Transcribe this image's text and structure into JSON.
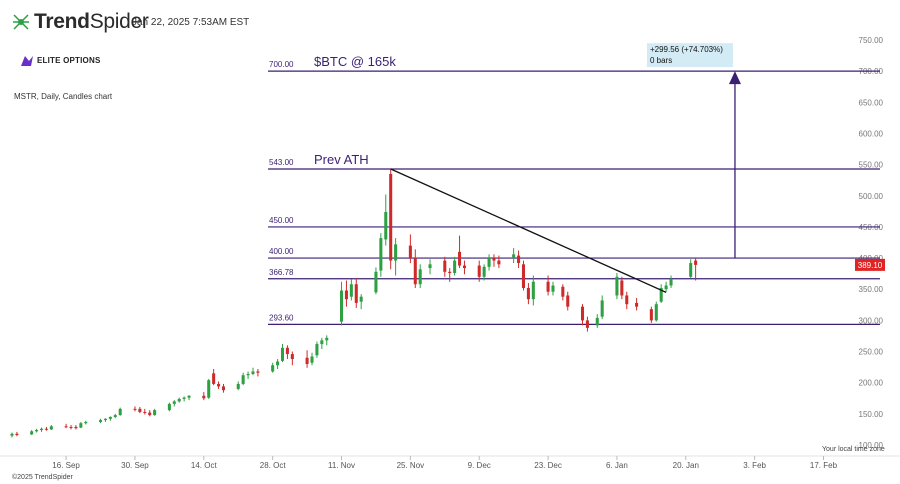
{
  "header": {
    "logo_bold": "Trend",
    "logo_light": "Spider",
    "datetime": "Jan 22, 2025 7:53AM EST",
    "logo_icon": "spider-icon"
  },
  "brand": {
    "text": "ELITE OPTIONS",
    "icon": "elite-options-icon",
    "color": "#6a2fc9"
  },
  "subtitle": "MSTR, Daily, Candles chart",
  "footer": "©2025 TrendSpider",
  "timezone_note": "Your local time zone",
  "chart_data": {
    "type": "candlestick",
    "symbol": "MSTR",
    "interval": "Daily",
    "ylim": [
      100,
      750
    ],
    "y_ticks": [
      "100.00",
      "150.00",
      "200.00",
      "250.00",
      "300.00",
      "350.00",
      "400.00",
      "450.00",
      "500.00",
      "550.00",
      "600.00",
      "650.00",
      "700.00",
      "750.00"
    ],
    "x_ticks": [
      {
        "label": "16. Sep",
        "date": "2024-09-16"
      },
      {
        "label": "30. Sep",
        "date": "2024-09-30"
      },
      {
        "label": "14. Oct",
        "date": "2024-10-14"
      },
      {
        "label": "28. Oct",
        "date": "2024-10-28"
      },
      {
        "label": "11. Nov",
        "date": "2024-11-11"
      },
      {
        "label": "25. Nov",
        "date": "2024-11-25"
      },
      {
        "label": "9. Dec",
        "date": "2024-12-09"
      },
      {
        "label": "23. Dec",
        "date": "2024-12-23"
      },
      {
        "label": "6. Jan",
        "date": "2025-01-06"
      },
      {
        "label": "20. Jan",
        "date": "2025-01-20"
      },
      {
        "label": "3. Feb",
        "date": "2025-02-03"
      },
      {
        "label": "17. Feb",
        "date": "2025-02-17"
      }
    ],
    "x_range": [
      "2024-09-05",
      "2025-02-23"
    ],
    "levels": [
      {
        "value": 700.0,
        "label": "700.00",
        "annotation": "$BTC @ 165k"
      },
      {
        "value": 543.0,
        "label": "543.00",
        "annotation": "Prev ATH"
      },
      {
        "value": 450.0,
        "label": "450.00",
        "annotation": ""
      },
      {
        "value": 400.0,
        "label": "400.00",
        "annotation": ""
      },
      {
        "value": 366.78,
        "label": "366.78",
        "annotation": ""
      },
      {
        "value": 293.6,
        "label": "293.60",
        "annotation": ""
      }
    ],
    "trendline": {
      "from": [
        "2024-11-21",
        543
      ],
      "to": [
        "2025-01-16",
        345
      ]
    },
    "measure": {
      "date": "2025-01-30",
      "from": 400,
      "to": 700,
      "label_line1": "+299.56 (+74.703%)",
      "label_line2": "0 bars"
    },
    "last_price": {
      "value": 389.1,
      "label": "389.10"
    },
    "colors": {
      "up": "#2ea043",
      "down": "#cf2a2a",
      "level": "#3b1f73",
      "label": "#3b1f73",
      "trend": "#111111",
      "badge": "#e02323",
      "measure_bg": "#d3ebf4"
    },
    "candles": [
      {
        "d": "2024-09-05",
        "o": 115,
        "h": 120,
        "l": 112,
        "c": 118
      },
      {
        "d": "2024-09-06",
        "o": 118,
        "h": 121,
        "l": 114,
        "c": 116
      },
      {
        "d": "2024-09-09",
        "o": 117,
        "h": 124,
        "l": 116,
        "c": 122
      },
      {
        "d": "2024-09-10",
        "o": 122,
        "h": 126,
        "l": 120,
        "c": 124
      },
      {
        "d": "2024-09-11",
        "o": 124,
        "h": 128,
        "l": 121,
        "c": 126
      },
      {
        "d": "2024-09-12",
        "o": 126,
        "h": 129,
        "l": 123,
        "c": 125
      },
      {
        "d": "2024-09-13",
        "o": 125,
        "h": 132,
        "l": 124,
        "c": 130
      },
      {
        "d": "2024-09-16",
        "o": 130,
        "h": 134,
        "l": 127,
        "c": 129
      },
      {
        "d": "2024-09-17",
        "o": 129,
        "h": 132,
        "l": 125,
        "c": 128
      },
      {
        "d": "2024-09-18",
        "o": 129,
        "h": 132,
        "l": 125,
        "c": 127
      },
      {
        "d": "2024-09-19",
        "o": 128,
        "h": 137,
        "l": 127,
        "c": 135
      },
      {
        "d": "2024-09-20",
        "o": 135,
        "h": 139,
        "l": 133,
        "c": 137
      },
      {
        "d": "2024-09-23",
        "o": 137,
        "h": 142,
        "l": 135,
        "c": 140
      },
      {
        "d": "2024-09-24",
        "o": 140,
        "h": 143,
        "l": 137,
        "c": 142
      },
      {
        "d": "2024-09-25",
        "o": 142,
        "h": 146,
        "l": 139,
        "c": 145
      },
      {
        "d": "2024-09-26",
        "o": 145,
        "h": 150,
        "l": 143,
        "c": 148
      },
      {
        "d": "2024-09-27",
        "o": 148,
        "h": 160,
        "l": 147,
        "c": 158
      },
      {
        "d": "2024-09-30",
        "o": 158,
        "h": 162,
        "l": 154,
        "c": 157
      },
      {
        "d": "2024-10-01",
        "o": 158,
        "h": 161,
        "l": 151,
        "c": 153
      },
      {
        "d": "2024-10-02",
        "o": 153,
        "h": 158,
        "l": 149,
        "c": 152
      },
      {
        "d": "2024-10-03",
        "o": 152,
        "h": 156,
        "l": 146,
        "c": 148
      },
      {
        "d": "2024-10-04",
        "o": 148,
        "h": 158,
        "l": 147,
        "c": 156
      },
      {
        "d": "2024-10-07",
        "o": 156,
        "h": 168,
        "l": 154,
        "c": 166
      },
      {
        "d": "2024-10-08",
        "o": 166,
        "h": 172,
        "l": 162,
        "c": 170
      },
      {
        "d": "2024-10-09",
        "o": 170,
        "h": 176,
        "l": 168,
        "c": 174
      },
      {
        "d": "2024-10-10",
        "o": 174,
        "h": 178,
        "l": 170,
        "c": 176
      },
      {
        "d": "2024-10-11",
        "o": 176,
        "h": 180,
        "l": 172,
        "c": 179
      },
      {
        "d": "2024-10-14",
        "o": 179,
        "h": 185,
        "l": 172,
        "c": 175
      },
      {
        "d": "2024-10-15",
        "o": 176,
        "h": 206,
        "l": 174,
        "c": 204
      },
      {
        "d": "2024-10-16",
        "o": 215,
        "h": 222,
        "l": 196,
        "c": 198
      },
      {
        "d": "2024-10-17",
        "o": 198,
        "h": 202,
        "l": 190,
        "c": 194
      },
      {
        "d": "2024-10-18",
        "o": 194,
        "h": 198,
        "l": 184,
        "c": 188
      },
      {
        "d": "2024-10-21",
        "o": 190,
        "h": 202,
        "l": 188,
        "c": 198
      },
      {
        "d": "2024-10-22",
        "o": 198,
        "h": 216,
        "l": 196,
        "c": 212
      },
      {
        "d": "2024-10-23",
        "o": 212,
        "h": 218,
        "l": 206,
        "c": 214
      },
      {
        "d": "2024-10-24",
        "o": 214,
        "h": 224,
        "l": 212,
        "c": 218
      },
      {
        "d": "2024-10-25",
        "o": 218,
        "h": 222,
        "l": 210,
        "c": 216
      },
      {
        "d": "2024-10-28",
        "o": 218,
        "h": 232,
        "l": 216,
        "c": 228
      },
      {
        "d": "2024-10-29",
        "o": 228,
        "h": 238,
        "l": 222,
        "c": 234
      },
      {
        "d": "2024-10-30",
        "o": 235,
        "h": 262,
        "l": 233,
        "c": 256
      },
      {
        "d": "2024-10-31",
        "o": 256,
        "h": 260,
        "l": 238,
        "c": 246
      },
      {
        "d": "2024-11-01",
        "o": 246,
        "h": 250,
        "l": 228,
        "c": 238
      },
      {
        "d": "2024-11-04",
        "o": 240,
        "h": 252,
        "l": 224,
        "c": 230
      },
      {
        "d": "2024-11-05",
        "o": 232,
        "h": 248,
        "l": 228,
        "c": 242
      },
      {
        "d": "2024-11-06",
        "o": 244,
        "h": 266,
        "l": 240,
        "c": 262
      },
      {
        "d": "2024-11-07",
        "o": 262,
        "h": 272,
        "l": 254,
        "c": 268
      },
      {
        "d": "2024-11-08",
        "o": 268,
        "h": 276,
        "l": 260,
        "c": 272
      },
      {
        "d": "2024-11-11",
        "o": 298,
        "h": 362,
        "l": 292,
        "c": 348
      },
      {
        "d": "2024-11-12",
        "o": 348,
        "h": 364,
        "l": 322,
        "c": 334
      },
      {
        "d": "2024-11-13",
        "o": 338,
        "h": 366,
        "l": 332,
        "c": 358
      },
      {
        "d": "2024-11-14",
        "o": 358,
        "h": 368,
        "l": 320,
        "c": 328
      },
      {
        "d": "2024-11-15",
        "o": 330,
        "h": 342,
        "l": 318,
        "c": 338
      },
      {
        "d": "2024-11-18",
        "o": 345,
        "h": 385,
        "l": 342,
        "c": 378
      },
      {
        "d": "2024-11-19",
        "o": 380,
        "h": 440,
        "l": 370,
        "c": 432
      },
      {
        "d": "2024-11-20",
        "o": 430,
        "h": 502,
        "l": 420,
        "c": 474
      },
      {
        "d": "2024-11-21",
        "o": 535,
        "h": 543,
        "l": 382,
        "c": 396
      },
      {
        "d": "2024-11-22",
        "o": 396,
        "h": 432,
        "l": 372,
        "c": 422
      },
      {
        "d": "2024-11-25",
        "o": 420,
        "h": 438,
        "l": 392,
        "c": 400
      },
      {
        "d": "2024-11-26",
        "o": 400,
        "h": 414,
        "l": 352,
        "c": 358
      },
      {
        "d": "2024-11-27",
        "o": 358,
        "h": 390,
        "l": 352,
        "c": 382
      },
      {
        "d": "2024-11-29",
        "o": 384,
        "h": 398,
        "l": 374,
        "c": 390
      },
      {
        "d": "2024-12-02",
        "o": 396,
        "h": 402,
        "l": 370,
        "c": 378
      },
      {
        "d": "2024-12-03",
        "o": 378,
        "h": 384,
        "l": 362,
        "c": 376
      },
      {
        "d": "2024-12-04",
        "o": 376,
        "h": 402,
        "l": 372,
        "c": 396
      },
      {
        "d": "2024-12-05",
        "o": 410,
        "h": 436,
        "l": 384,
        "c": 388
      },
      {
        "d": "2024-12-06",
        "o": 388,
        "h": 396,
        "l": 374,
        "c": 384
      },
      {
        "d": "2024-12-09",
        "o": 388,
        "h": 396,
        "l": 362,
        "c": 370
      },
      {
        "d": "2024-12-10",
        "o": 370,
        "h": 390,
        "l": 364,
        "c": 386
      },
      {
        "d": "2024-12-11",
        "o": 386,
        "h": 406,
        "l": 380,
        "c": 400
      },
      {
        "d": "2024-12-12",
        "o": 400,
        "h": 406,
        "l": 386,
        "c": 396
      },
      {
        "d": "2024-12-13",
        "o": 396,
        "h": 404,
        "l": 384,
        "c": 390
      },
      {
        "d": "2024-12-16",
        "o": 400,
        "h": 416,
        "l": 392,
        "c": 406
      },
      {
        "d": "2024-12-17",
        "o": 404,
        "h": 412,
        "l": 384,
        "c": 392
      },
      {
        "d": "2024-12-18",
        "o": 390,
        "h": 396,
        "l": 348,
        "c": 352
      },
      {
        "d": "2024-12-19",
        "o": 352,
        "h": 360,
        "l": 326,
        "c": 334
      },
      {
        "d": "2024-12-20",
        "o": 334,
        "h": 372,
        "l": 324,
        "c": 362
      },
      {
        "d": "2024-12-23",
        "o": 362,
        "h": 372,
        "l": 340,
        "c": 346
      },
      {
        "d": "2024-12-24",
        "o": 346,
        "h": 362,
        "l": 340,
        "c": 356
      },
      {
        "d": "2024-12-26",
        "o": 354,
        "h": 358,
        "l": 332,
        "c": 338
      },
      {
        "d": "2024-12-27",
        "o": 340,
        "h": 346,
        "l": 316,
        "c": 322
      },
      {
        "d": "2024-12-30",
        "o": 322,
        "h": 326,
        "l": 292,
        "c": 300
      },
      {
        "d": "2024-12-31",
        "o": 300,
        "h": 306,
        "l": 282,
        "c": 288
      },
      {
        "d": "2025-01-02",
        "o": 292,
        "h": 310,
        "l": 288,
        "c": 304
      },
      {
        "d": "2025-01-03",
        "o": 306,
        "h": 340,
        "l": 302,
        "c": 332
      },
      {
        "d": "2025-01-06",
        "o": 340,
        "h": 376,
        "l": 334,
        "c": 370
      },
      {
        "d": "2025-01-07",
        "o": 364,
        "h": 370,
        "l": 334,
        "c": 340
      },
      {
        "d": "2025-01-08",
        "o": 340,
        "h": 346,
        "l": 318,
        "c": 326
      },
      {
        "d": "2025-01-10",
        "o": 328,
        "h": 336,
        "l": 316,
        "c": 322
      },
      {
        "d": "2025-01-13",
        "o": 318,
        "h": 322,
        "l": 296,
        "c": 300
      },
      {
        "d": "2025-01-14",
        "o": 300,
        "h": 330,
        "l": 298,
        "c": 326
      },
      {
        "d": "2025-01-15",
        "o": 330,
        "h": 358,
        "l": 328,
        "c": 352
      },
      {
        "d": "2025-01-16",
        "o": 350,
        "h": 362,
        "l": 346,
        "c": 356
      },
      {
        "d": "2025-01-17",
        "o": 356,
        "h": 372,
        "l": 352,
        "c": 366
      },
      {
        "d": "2025-01-21",
        "o": 370,
        "h": 398,
        "l": 368,
        "c": 392
      },
      {
        "d": "2025-01-22",
        "o": 396,
        "h": 400,
        "l": 364,
        "c": 389.1
      }
    ]
  }
}
